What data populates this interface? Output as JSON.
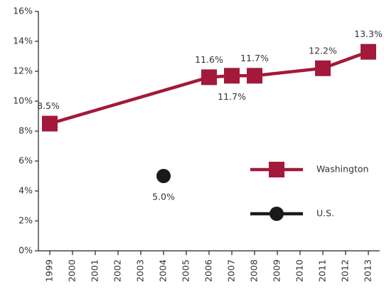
{
  "chart_data": {
    "type": "line",
    "series": [
      {
        "name": "Washington",
        "color": "#a3193b",
        "marker": "square",
        "x": [
          1999,
          2006,
          2007,
          2008,
          2011,
          2013
        ],
        "values": [
          8.5,
          11.6,
          11.7,
          11.7,
          12.2,
          13.3
        ],
        "value_labels": [
          "8.5%",
          "11.6%",
          "11.7%",
          "11.7%",
          "12.2%",
          "13.3%"
        ]
      },
      {
        "name": "U.S.",
        "color": "#1a1a1a",
        "marker": "circle",
        "x": [
          2004
        ],
        "values": [
          5.0
        ],
        "value_labels": [
          "5.0%"
        ]
      }
    ],
    "xlim": [
      1998.5,
      2013.5
    ],
    "xticks": [
      1999,
      2000,
      2001,
      2002,
      2003,
      2004,
      2005,
      2006,
      2007,
      2008,
      2009,
      2010,
      2011,
      2012,
      2013
    ],
    "ylim": [
      0,
      16
    ],
    "yticks": [
      {
        "value": 0,
        "label": "0%"
      },
      {
        "value": 2,
        "label": "2%"
      },
      {
        "value": 4,
        "label": "4%"
      },
      {
        "value": 6,
        "label": "6%"
      },
      {
        "value": 8,
        "label": "8%"
      },
      {
        "value": 10,
        "label": "10%"
      },
      {
        "value": 12,
        "label": "12%"
      },
      {
        "value": 14,
        "label": "14%"
      },
      {
        "value": 16,
        "label": "16%"
      }
    ],
    "grid": false,
    "legend": "right"
  }
}
